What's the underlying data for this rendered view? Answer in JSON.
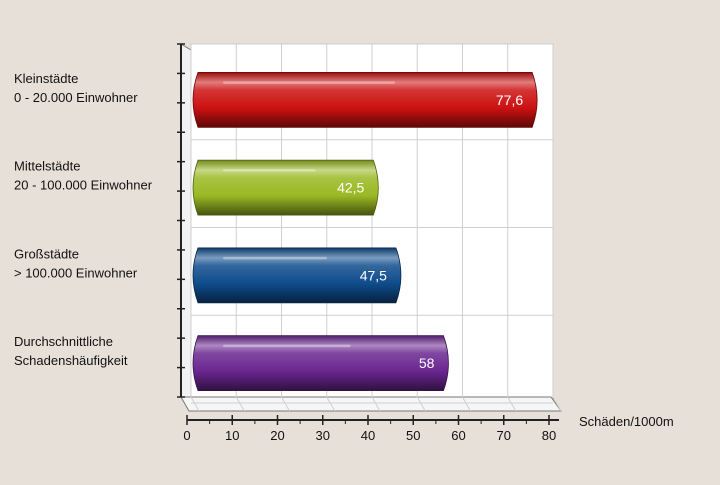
{
  "chart_data": {
    "type": "bar",
    "orientation": "horizontal",
    "style": "3d-cylinder",
    "categories": [
      [
        "Kleinstädte",
        "0 - 20.000 Einwohner"
      ],
      [
        "Mittelstädte",
        "20 - 100.000 Einwohner"
      ],
      [
        "Großstädte",
        "> 100.000 Einwohner"
      ],
      [
        "Durchschnittliche",
        "Schadenshäufigkeit"
      ]
    ],
    "values": [
      77.6,
      42.5,
      47.5,
      58
    ],
    "value_labels": [
      "77,6",
      "42,5",
      "47,5",
      "58"
    ],
    "bar_colors": [
      "#cc1111",
      "#9ab823",
      "#0f4c8c",
      "#6a2690"
    ],
    "xlabel": "Schäden/1000m",
    "xlim": [
      0,
      80
    ],
    "x_ticks": [
      0,
      10,
      20,
      30,
      40,
      50,
      60,
      70,
      80
    ],
    "grid": true,
    "legend": "none"
  },
  "colors": {
    "background": "#e7e0d8",
    "plot_wall": "#ffffff",
    "gridline": "#cfcfcf"
  }
}
